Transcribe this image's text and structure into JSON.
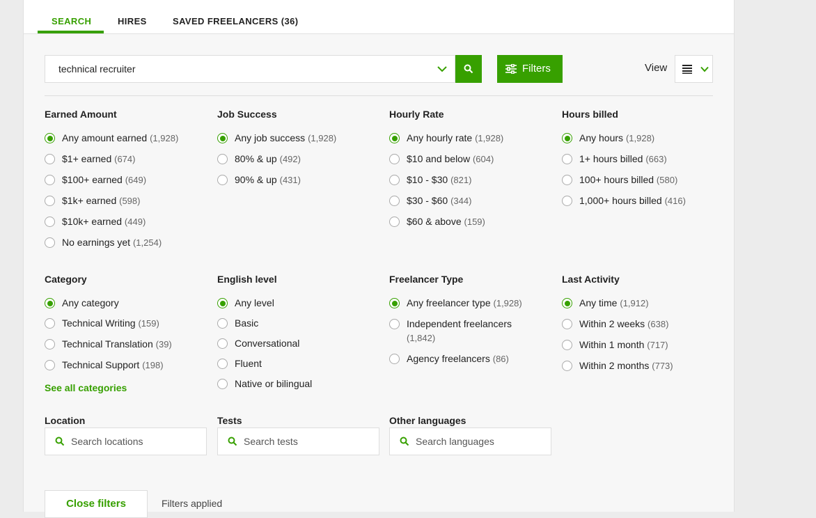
{
  "tabs": [
    {
      "label": "SEARCH"
    },
    {
      "label": "HIRES"
    },
    {
      "label": "SAVED FREELANCERS (36)"
    }
  ],
  "search": {
    "query": "technical recruiter",
    "filters_button": "Filters",
    "view_label": "View"
  },
  "filter_rows": [
    [
      {
        "title": "Earned Amount",
        "options": [
          {
            "label": "Any amount earned",
            "count": "(1,928)"
          },
          {
            "label": "$1+ earned",
            "count": "(674)"
          },
          {
            "label": "$100+ earned",
            "count": "(649)"
          },
          {
            "label": "$1k+ earned",
            "count": "(598)"
          },
          {
            "label": "$10k+ earned",
            "count": "(449)"
          },
          {
            "label": "No earnings yet",
            "count": "(1,254)"
          }
        ]
      },
      {
        "title": "Job Success",
        "options": [
          {
            "label": "Any job success",
            "count": "(1,928)"
          },
          {
            "label": "80% & up",
            "count": "(492)"
          },
          {
            "label": "90% & up",
            "count": "(431)"
          }
        ]
      },
      {
        "title": "Hourly Rate",
        "options": [
          {
            "label": "Any hourly rate",
            "count": "(1,928)"
          },
          {
            "label": "$10 and below",
            "count": "(604)"
          },
          {
            "label": "$10 - $30",
            "count": "(821)"
          },
          {
            "label": "$30 - $60",
            "count": "(344)"
          },
          {
            "label": "$60 & above",
            "count": "(159)"
          }
        ]
      },
      {
        "title": "Hours billed",
        "options": [
          {
            "label": "Any hours",
            "count": "(1,928)"
          },
          {
            "label": "1+ hours billed",
            "count": "(663)"
          },
          {
            "label": "100+ hours billed",
            "count": "(580)"
          },
          {
            "label": "1,000+ hours billed",
            "count": "(416)"
          }
        ]
      }
    ],
    [
      {
        "title": "Category",
        "options": [
          {
            "label": "Any category"
          },
          {
            "label": "Technical Writing",
            "count": "(159)"
          },
          {
            "label": "Technical Translation",
            "count": "(39)"
          },
          {
            "label": "Technical Support",
            "count": "(198)"
          }
        ],
        "link": "See all categories"
      },
      {
        "title": "English level",
        "options": [
          {
            "label": "Any level"
          },
          {
            "label": "Basic"
          },
          {
            "label": "Conversational"
          },
          {
            "label": "Fluent"
          },
          {
            "label": "Native or bilingual"
          }
        ]
      },
      {
        "title": "Freelancer Type",
        "options": [
          {
            "label": "Any freelancer type",
            "count": "(1,928)"
          },
          {
            "label": "Independent freelancers",
            "count": "(1,842)"
          },
          {
            "label": "Agency freelancers",
            "count": "(86)"
          }
        ]
      },
      {
        "title": "Last Activity",
        "options": [
          {
            "label": "Any time",
            "count": "(1,912)"
          },
          {
            "label": "Within 2 weeks",
            "count": "(638)"
          },
          {
            "label": "Within 1 month",
            "count": "(717)"
          },
          {
            "label": "Within 2 months",
            "count": "(773)"
          }
        ]
      }
    ]
  ],
  "search_filters": [
    {
      "title": "Location",
      "placeholder": "Search locations"
    },
    {
      "title": "Tests",
      "placeholder": "Search tests"
    },
    {
      "title": "Other languages",
      "placeholder": "Search languages"
    }
  ],
  "footer": {
    "close_button": "Close filters",
    "status": "Filters applied"
  }
}
